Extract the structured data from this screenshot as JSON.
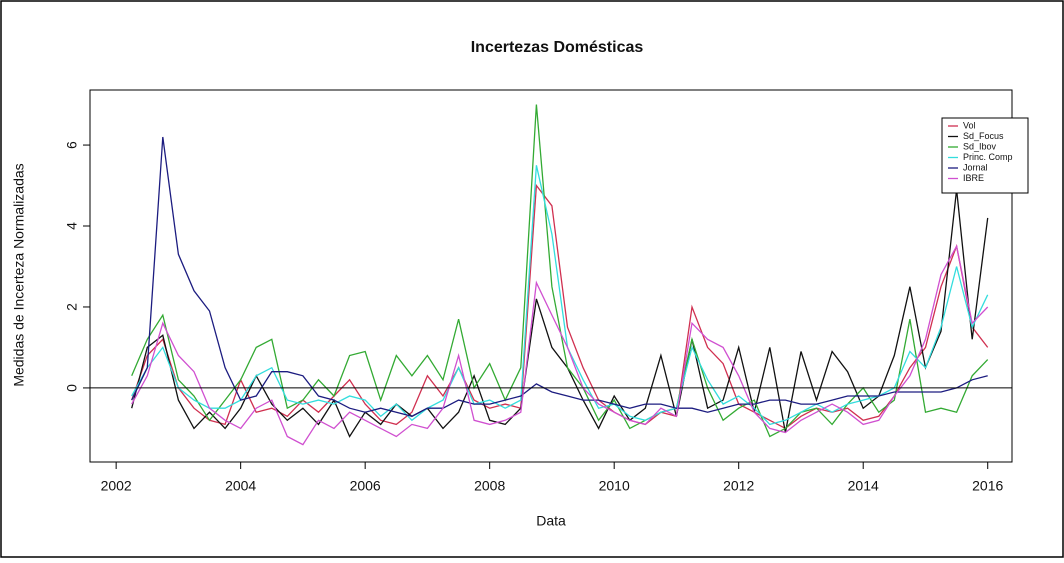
{
  "chart_data": {
    "type": "line",
    "title": "Incertezas Domésticas",
    "xlabel": "Data",
    "ylabel": "Medidas de Incerteza Normalizadas",
    "x": [
      2002.25,
      2002.5,
      2002.75,
      2003,
      2003.25,
      2003.5,
      2003.75,
      2004,
      2004.25,
      2004.5,
      2004.75,
      2005,
      2005.25,
      2005.5,
      2005.75,
      2006,
      2006.25,
      2006.5,
      2006.75,
      2007,
      2007.25,
      2007.5,
      2007.75,
      2008,
      2008.25,
      2008.5,
      2008.75,
      2009,
      2009.25,
      2009.5,
      2009.75,
      2010,
      2010.25,
      2010.5,
      2010.75,
      2011,
      2011.25,
      2011.5,
      2011.75,
      2012,
      2012.25,
      2012.5,
      2012.75,
      2013,
      2013.25,
      2013.5,
      2013.75,
      2014,
      2014.25,
      2014.5,
      2014.75,
      2015,
      2015.25,
      2015.5,
      2015.75,
      2016
    ],
    "series": [
      {
        "name": "Vol",
        "color": "#d03050",
        "values": [
          -0.3,
          0.8,
          1.2,
          0.0,
          -0.5,
          -0.8,
          -0.9,
          0.2,
          -0.6,
          -0.5,
          -0.7,
          -0.3,
          -0.6,
          -0.2,
          0.2,
          -0.4,
          -0.8,
          -0.9,
          -0.6,
          0.3,
          -0.2,
          0.5,
          -0.3,
          -0.5,
          -0.4,
          -0.5,
          5.0,
          4.5,
          1.5,
          0.5,
          -0.3,
          -0.6,
          -0.8,
          -0.9,
          -0.6,
          -0.7,
          2.0,
          1.0,
          0.6,
          -0.4,
          -0.6,
          -0.8,
          -1.0,
          -0.7,
          -0.5,
          -0.6,
          -0.5,
          -0.8,
          -0.7,
          -0.2,
          0.5,
          1.0,
          2.5,
          3.5,
          1.5,
          1.0
        ]
      },
      {
        "name": "Sd_Focus",
        "color": "#111111",
        "values": [
          -0.5,
          1.0,
          1.3,
          -0.3,
          -1.0,
          -0.6,
          -1.0,
          -0.5,
          0.3,
          -0.4,
          -0.8,
          -0.5,
          -0.9,
          -0.3,
          -1.2,
          -0.6,
          -0.9,
          -0.4,
          -0.7,
          -0.5,
          -1.0,
          -0.6,
          0.3,
          -0.8,
          -0.9,
          -0.5,
          2.2,
          1.0,
          0.5,
          -0.3,
          -1.0,
          -0.2,
          -0.8,
          -0.5,
          0.8,
          -0.7,
          1.2,
          -0.5,
          -0.3,
          1.0,
          -0.6,
          1.0,
          -1.1,
          0.9,
          -0.3,
          0.9,
          0.4,
          -0.5,
          -0.2,
          0.8,
          2.5,
          0.5,
          1.4,
          4.9,
          1.2,
          4.2
        ]
      },
      {
        "name": "Sd_Ibov",
        "color": "#33aa33",
        "values": [
          0.3,
          1.2,
          1.8,
          0.2,
          -0.2,
          -0.8,
          -0.3,
          0.2,
          1.0,
          1.2,
          -0.5,
          -0.3,
          0.2,
          -0.2,
          0.8,
          0.9,
          -0.3,
          0.8,
          0.3,
          0.8,
          0.2,
          1.7,
          0.0,
          0.6,
          -0.3,
          0.5,
          7.0,
          2.5,
          0.5,
          0.0,
          -0.8,
          -0.3,
          -1.0,
          -0.8,
          -0.6,
          -0.5,
          1.2,
          0.0,
          -0.8,
          -0.5,
          -0.3,
          -1.2,
          -1.0,
          -0.6,
          -0.5,
          -0.9,
          -0.4,
          0.0,
          -0.6,
          -0.3,
          1.7,
          -0.6,
          -0.5,
          -0.6,
          0.3,
          0.7
        ]
      },
      {
        "name": "Princ. Comp",
        "color": "#33dddd",
        "values": [
          -0.2,
          0.5,
          1.0,
          0.0,
          -0.3,
          -0.5,
          -0.5,
          -0.3,
          0.3,
          0.5,
          -0.3,
          -0.4,
          -0.3,
          -0.4,
          -0.2,
          -0.3,
          -0.7,
          -0.4,
          -0.8,
          -0.5,
          -0.3,
          0.5,
          -0.4,
          -0.3,
          -0.5,
          -0.3,
          5.5,
          3.8,
          1.0,
          0.2,
          -0.5,
          -0.4,
          -0.7,
          -0.8,
          -0.6,
          -0.5,
          1.0,
          0.2,
          -0.4,
          -0.2,
          -0.5,
          -0.9,
          -0.8,
          -0.6,
          -0.4,
          -0.6,
          -0.4,
          -0.3,
          -0.2,
          0.0,
          0.9,
          0.5,
          1.5,
          3.0,
          1.5,
          2.3
        ]
      },
      {
        "name": "Jornal",
        "color": "#1c1c80",
        "values": [
          -0.3,
          0.5,
          6.2,
          3.3,
          2.4,
          1.9,
          0.5,
          -0.3,
          -0.2,
          0.4,
          0.4,
          0.3,
          -0.2,
          -0.3,
          -0.5,
          -0.6,
          -0.5,
          -0.6,
          -0.7,
          -0.5,
          -0.5,
          -0.3,
          -0.4,
          -0.4,
          -0.3,
          -0.2,
          0.1,
          -0.1,
          -0.2,
          -0.3,
          -0.3,
          -0.4,
          -0.5,
          -0.4,
          -0.4,
          -0.5,
          -0.5,
          -0.6,
          -0.5,
          -0.4,
          -0.4,
          -0.3,
          -0.3,
          -0.4,
          -0.4,
          -0.3,
          -0.2,
          -0.2,
          -0.2,
          -0.1,
          -0.1,
          -0.1,
          -0.1,
          0.0,
          0.2,
          0.3
        ]
      },
      {
        "name": "IBRE",
        "color": "#d050d0",
        "values": [
          -0.4,
          0.3,
          1.6,
          0.8,
          0.4,
          -0.5,
          -0.8,
          -1.0,
          -0.5,
          -0.3,
          -1.2,
          -1.4,
          -0.8,
          -1.0,
          -0.6,
          -0.8,
          -1.0,
          -1.2,
          -0.9,
          -1.0,
          -0.5,
          0.8,
          -0.8,
          -0.9,
          -0.8,
          -0.6,
          2.6,
          1.8,
          1.0,
          0.0,
          -0.4,
          -0.6,
          -0.8,
          -0.9,
          -0.5,
          -0.7,
          1.6,
          1.2,
          1.0,
          0.3,
          -0.6,
          -1.0,
          -1.1,
          -0.8,
          -0.6,
          -0.4,
          -0.6,
          -0.9,
          -0.8,
          -0.2,
          0.3,
          1.2,
          2.8,
          3.5,
          1.6,
          2.0
        ]
      }
    ],
    "xlim": [
      2001.58,
      2016.39
    ],
    "xticks": [
      2002,
      2004,
      2006,
      2008,
      2010,
      2012,
      2014,
      2016
    ],
    "ylim": [
      -1.83,
      7.36
    ],
    "yticks": [
      0,
      2,
      4,
      6
    ],
    "hline": 0,
    "legend": "topright"
  }
}
